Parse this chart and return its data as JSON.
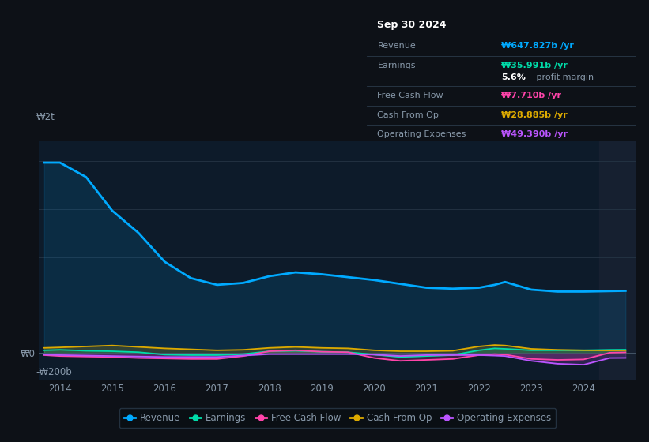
{
  "bg_color": "#0d1117",
  "plot_bg_color": "#0d1b2a",
  "grid_color": "#253545",
  "text_color": "#8899aa",
  "ylabel_2t": "₩2t",
  "ylabel_0": "₩0",
  "ylabel_neg200b": "-₩200b",
  "x_years": [
    2013.7,
    2014.0,
    2014.5,
    2015.0,
    2015.5,
    2016.0,
    2016.5,
    2017.0,
    2017.5,
    2018.0,
    2018.5,
    2019.0,
    2019.5,
    2020.0,
    2020.5,
    2021.0,
    2021.5,
    2022.0,
    2022.3,
    2022.5,
    2023.0,
    2023.5,
    2024.0,
    2024.5,
    2024.8
  ],
  "revenue": [
    1980,
    1980,
    1830,
    1480,
    1250,
    950,
    780,
    710,
    730,
    800,
    840,
    820,
    790,
    760,
    720,
    680,
    670,
    680,
    710,
    740,
    660,
    640,
    640,
    645,
    648
  ],
  "earnings": [
    30,
    35,
    25,
    20,
    10,
    -15,
    -20,
    -20,
    -10,
    20,
    25,
    15,
    10,
    -15,
    -40,
    -30,
    -20,
    30,
    50,
    45,
    30,
    30,
    30,
    35,
    36
  ],
  "free_cash_flow": [
    -20,
    -30,
    -35,
    -40,
    -50,
    -55,
    -60,
    -60,
    -30,
    20,
    30,
    15,
    10,
    -50,
    -80,
    -70,
    -60,
    -20,
    -10,
    -15,
    -60,
    -70,
    -65,
    5,
    8
  ],
  "cash_from_op": [
    55,
    60,
    70,
    80,
    65,
    50,
    40,
    30,
    35,
    55,
    65,
    55,
    50,
    30,
    20,
    20,
    25,
    70,
    85,
    80,
    45,
    35,
    30,
    28,
    29
  ],
  "operating_expenses": [
    -15,
    -20,
    -25,
    -30,
    -35,
    -40,
    -40,
    -40,
    -25,
    -10,
    -10,
    -10,
    -10,
    -15,
    -30,
    -20,
    -20,
    -20,
    -25,
    -30,
    -80,
    -110,
    -120,
    -50,
    -49
  ],
  "revenue_color": "#00aaff",
  "earnings_color": "#00ddaa",
  "fcf_color": "#ff44aa",
  "cashop_color": "#ddaa00",
  "opex_color": "#bb55ff",
  "shaded_region_start": 2024.3,
  "shaded_region_color": "#162030",
  "info_box": {
    "date": "Sep 30 2024",
    "revenue_label": "Revenue",
    "revenue_value": "₩647.827b /yr",
    "revenue_color": "#00aaff",
    "earnings_label": "Earnings",
    "earnings_value": "₩35.991b /yr",
    "earnings_color": "#00ddaa",
    "margin_value": "5.6%",
    "margin_text": " profit margin",
    "fcf_label": "Free Cash Flow",
    "fcf_value": "₩7.710b /yr",
    "fcf_color": "#ff44aa",
    "cashop_label": "Cash From Op",
    "cashop_value": "₩28.885b /yr",
    "cashop_color": "#ddaa00",
    "opex_label": "Operating Expenses",
    "opex_value": "₩49.390b /yr",
    "opex_color": "#bb55ff",
    "box_bg": "#050a0f"
  },
  "legend_labels": [
    "Revenue",
    "Earnings",
    "Free Cash Flow",
    "Cash From Op",
    "Operating Expenses"
  ],
  "legend_colors": [
    "#00aaff",
    "#00ddaa",
    "#ff44aa",
    "#ddaa00",
    "#bb55ff"
  ],
  "ylim_min": -280,
  "ylim_max": 2200,
  "xlim_min": 2013.6,
  "xlim_max": 2025.0
}
